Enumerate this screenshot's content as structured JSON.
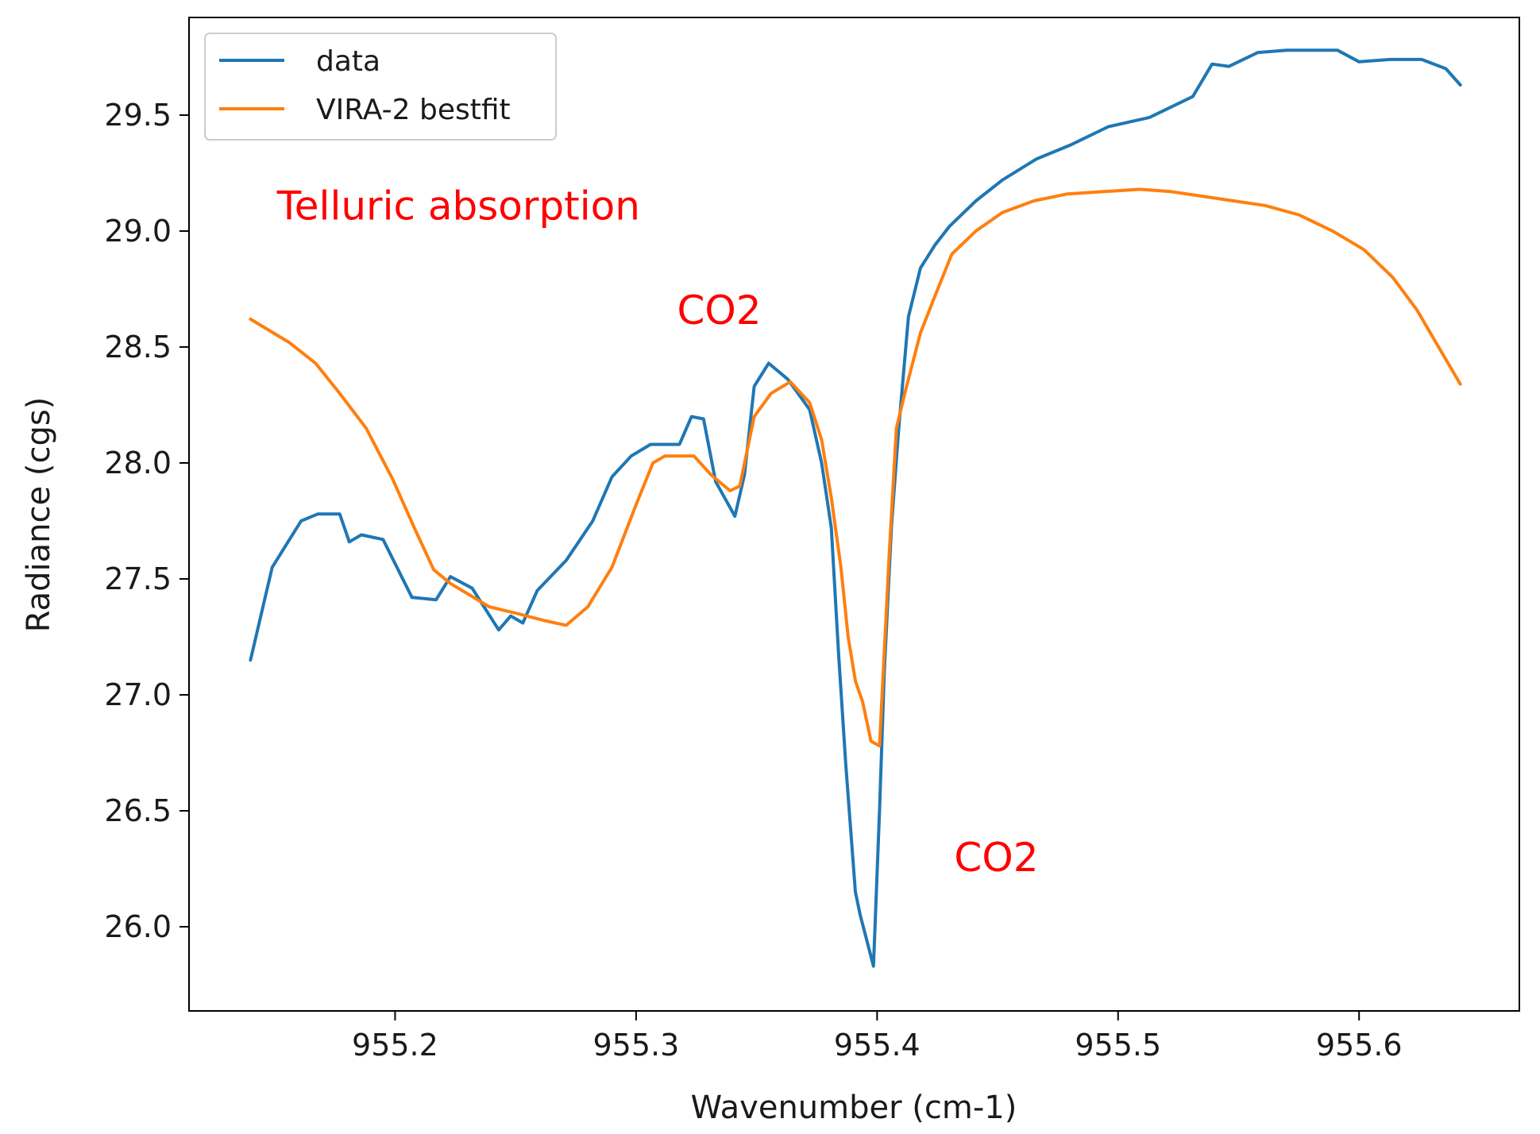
{
  "chart_data": {
    "type": "line",
    "title": "",
    "xlabel": "Wavenumber (cm-1)",
    "ylabel": "Radiance (cgs)",
    "xlim": [
      955.1145,
      955.6665
    ],
    "ylim": [
      25.637,
      29.921
    ],
    "xticks": [
      955.2,
      955.3,
      955.4,
      955.5,
      955.6
    ],
    "xtick_labels": [
      "955.2",
      "955.3",
      "955.4",
      "955.5",
      "955.6"
    ],
    "yticks": [
      26.0,
      26.5,
      27.0,
      27.5,
      28.0,
      28.5,
      29.0,
      29.5
    ],
    "ytick_labels": [
      "26.0",
      "26.5",
      "27.0",
      "27.5",
      "28.0",
      "28.5",
      "29.0",
      "29.5"
    ],
    "grid": false,
    "legend_position": "top-left",
    "series": [
      {
        "name": "data",
        "color": "#1f77b4",
        "x": [
          955.14,
          955.149,
          955.155,
          955.161,
          955.168,
          955.177,
          955.181,
          955.186,
          955.195,
          955.207,
          955.217,
          955.223,
          955.232,
          955.243,
          955.248,
          955.253,
          955.259,
          955.271,
          955.282,
          955.29,
          955.298,
          955.306,
          955.312,
          955.318,
          955.323,
          955.328,
          955.333,
          955.341,
          955.345,
          955.349,
          955.355,
          955.363,
          955.372,
          955.377,
          955.381,
          955.384,
          955.387,
          955.391,
          955.393,
          955.395,
          955.3985,
          955.401,
          955.403,
          955.406,
          955.409,
          955.413,
          955.418,
          955.424,
          955.43,
          955.441,
          955.452,
          955.466,
          955.48,
          955.496,
          955.513,
          955.531,
          955.539,
          955.546,
          955.558,
          955.57,
          955.581,
          955.591,
          955.6,
          955.613,
          955.626,
          955.636,
          955.642
        ],
        "y": [
          27.15,
          27.55,
          27.65,
          27.75,
          27.78,
          27.78,
          27.66,
          27.69,
          27.67,
          27.42,
          27.41,
          27.51,
          27.46,
          27.28,
          27.34,
          27.31,
          27.45,
          27.58,
          27.75,
          27.94,
          28.03,
          28.08,
          28.08,
          28.08,
          28.2,
          28.19,
          27.92,
          27.77,
          27.95,
          28.33,
          28.43,
          28.36,
          28.23,
          28.0,
          27.72,
          27.18,
          26.7,
          26.15,
          26.05,
          25.97,
          25.83,
          26.5,
          27.1,
          27.73,
          28.15,
          28.63,
          28.84,
          28.94,
          29.02,
          29.13,
          29.22,
          29.31,
          29.37,
          29.45,
          29.49,
          29.58,
          29.72,
          29.71,
          29.77,
          29.78,
          29.78,
          29.78,
          29.73,
          29.74,
          29.74,
          29.7,
          29.63
        ]
      },
      {
        "name": "VIRA-2 bestfit",
        "color": "#ff7f0e",
        "x": [
          955.14,
          955.156,
          955.167,
          955.177,
          955.188,
          955.199,
          955.208,
          955.216,
          955.223,
          955.239,
          955.251,
          955.262,
          955.271,
          955.28,
          955.29,
          955.3,
          955.307,
          955.312,
          955.318,
          955.324,
          955.331,
          955.339,
          955.343,
          955.349,
          955.356,
          955.364,
          955.372,
          955.377,
          955.381,
          955.385,
          955.388,
          955.391,
          955.394,
          955.3975,
          955.401,
          955.405,
          955.408,
          955.412,
          955.418,
          955.424,
          955.431,
          955.441,
          955.452,
          955.465,
          955.479,
          955.494,
          955.509,
          955.522,
          955.535,
          955.548,
          955.561,
          955.575,
          955.589,
          955.602,
          955.614,
          955.624,
          955.633,
          955.642
        ],
        "y": [
          28.62,
          28.52,
          28.43,
          28.3,
          28.15,
          27.93,
          27.72,
          27.54,
          27.48,
          27.38,
          27.35,
          27.32,
          27.3,
          27.38,
          27.55,
          27.82,
          28.0,
          28.03,
          28.03,
          28.03,
          27.95,
          27.88,
          27.9,
          28.2,
          28.3,
          28.35,
          28.26,
          28.1,
          27.85,
          27.55,
          27.25,
          27.06,
          26.97,
          26.8,
          26.78,
          27.6,
          28.15,
          28.32,
          28.56,
          28.72,
          28.9,
          29.0,
          29.08,
          29.13,
          29.16,
          29.17,
          29.18,
          29.17,
          29.15,
          29.13,
          29.11,
          29.07,
          29.0,
          28.92,
          28.8,
          28.66,
          28.5,
          28.34
        ]
      }
    ],
    "annotations": [
      {
        "text": "Telluric absorption",
        "x": 955.151,
        "y": 29.05,
        "color": "#ff0000"
      },
      {
        "text": "CO2",
        "x": 955.317,
        "y": 28.6,
        "color": "#ff0000"
      },
      {
        "text": "CO2",
        "x": 955.432,
        "y": 26.24,
        "color": "#ff0000"
      }
    ]
  }
}
